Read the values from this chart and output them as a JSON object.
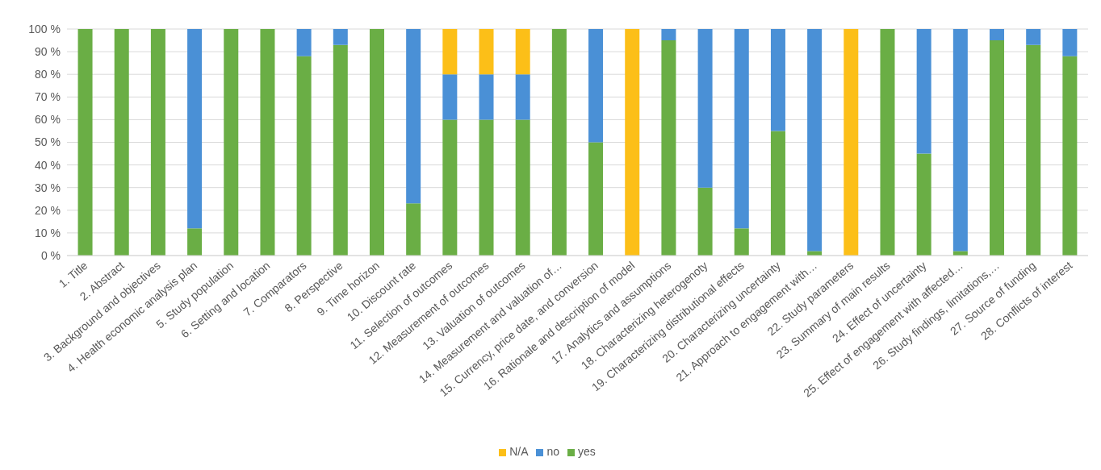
{
  "chart_data": {
    "type": "bar",
    "stacked": true,
    "categories": [
      "1. Title",
      "2. Abstract",
      "3. Background and objectives",
      "4. Health economic analysis plan",
      "5. Study population",
      "6. Setting and location",
      "7. Comparators",
      "8. Perspective",
      "9. Time horizon",
      "10. Discount rate",
      "11. Selection of outcomes",
      "12. Measurement of outcomes",
      "13. Valuation of outcomes",
      "14. Measurement and valuation of…",
      "15. Currency, price date, and conversion",
      "16. Rationale and description of model",
      "17. Analytics and assumptions",
      "18. Characterizing heterogenoty",
      "19. Characterizing distributional effects",
      "20. Characterizing uncertainty",
      "21. Approach to engagement with…",
      "22. Study parameters",
      "23. Summary of main results",
      "24. Effect of uncertainty",
      "25. Effect of engagement with affected…",
      "26. Study findings, limitations,…",
      "27. Source of funding",
      "28. Conflicts of interest"
    ],
    "series": [
      {
        "name": "yes",
        "color": "#6aae45",
        "values": [
          100,
          100,
          100,
          12,
          100,
          100,
          88,
          93,
          100,
          23,
          60,
          60,
          60,
          100,
          50,
          0,
          95,
          30,
          12,
          55,
          2,
          0,
          100,
          45,
          2,
          95,
          93,
          88
        ]
      },
      {
        "name": "no",
        "color": "#4a90d6",
        "values": [
          0,
          0,
          0,
          88,
          0,
          0,
          12,
          7,
          0,
          77,
          20,
          20,
          20,
          0,
          50,
          0,
          5,
          70,
          88,
          45,
          98,
          0,
          0,
          55,
          98,
          5,
          7,
          12
        ]
      },
      {
        "name": "N/A",
        "color": "#fcbf18",
        "values": [
          0,
          0,
          0,
          0,
          0,
          0,
          0,
          0,
          0,
          0,
          20,
          20,
          20,
          0,
          0,
          100,
          0,
          0,
          0,
          0,
          0,
          100,
          0,
          0,
          0,
          0,
          0,
          0
        ]
      }
    ],
    "ylim": [
      0,
      100
    ],
    "yticks": [
      {
        "value": 0,
        "label": "0 %"
      },
      {
        "value": 10,
        "label": "10 %"
      },
      {
        "value": 20,
        "label": "20 %"
      },
      {
        "value": 30,
        "label": "30 %"
      },
      {
        "value": 40,
        "label": "40 %"
      },
      {
        "value": 50,
        "label": "50 %"
      },
      {
        "value": 60,
        "label": "60 %"
      },
      {
        "value": 70,
        "label": "70 %"
      },
      {
        "value": 80,
        "label": "80 %"
      },
      {
        "value": 90,
        "label": "90 %"
      },
      {
        "value": 100,
        "label": "100 %"
      }
    ],
    "grid": "y",
    "legend": "bottom"
  }
}
